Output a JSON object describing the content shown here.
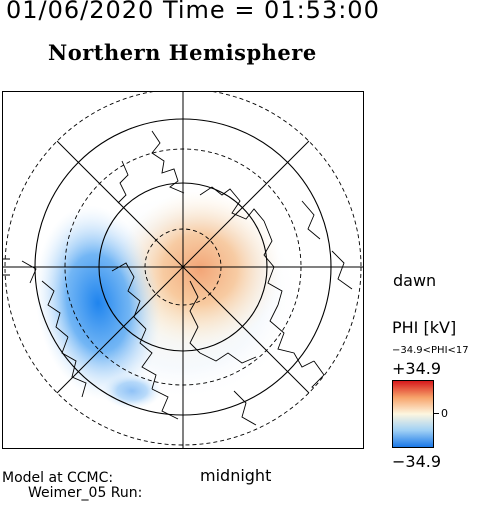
{
  "header": {
    "datetime": "01/06/2020 Time = 01:53:00",
    "hemisphere": "Northern Hemisphere"
  },
  "map": {
    "orientation_labels": {
      "right": "dawn",
      "bottom": "midnight"
    },
    "latitude_circles_deg": [
      80,
      70,
      60,
      50
    ],
    "meridian_step_deg": 45,
    "potential_pattern": {
      "positive_cell": "centered near pole, shifted toward dawn/noon",
      "negative_cell": "dusk side, extending toward midnight"
    }
  },
  "colorbar": {
    "title": "PHI [kV]",
    "range_text": "−34.9<PHI<17",
    "max_label": "+34.9",
    "zero_label": "0",
    "min_label": "−34.9",
    "colors": {
      "max": "#d7191c",
      "mid": "#fdf6e0",
      "min": "#1a78e8"
    }
  },
  "footer": {
    "model_line1": "Model at CCMC:",
    "model_line2": "Weimer_05 Run:"
  }
}
